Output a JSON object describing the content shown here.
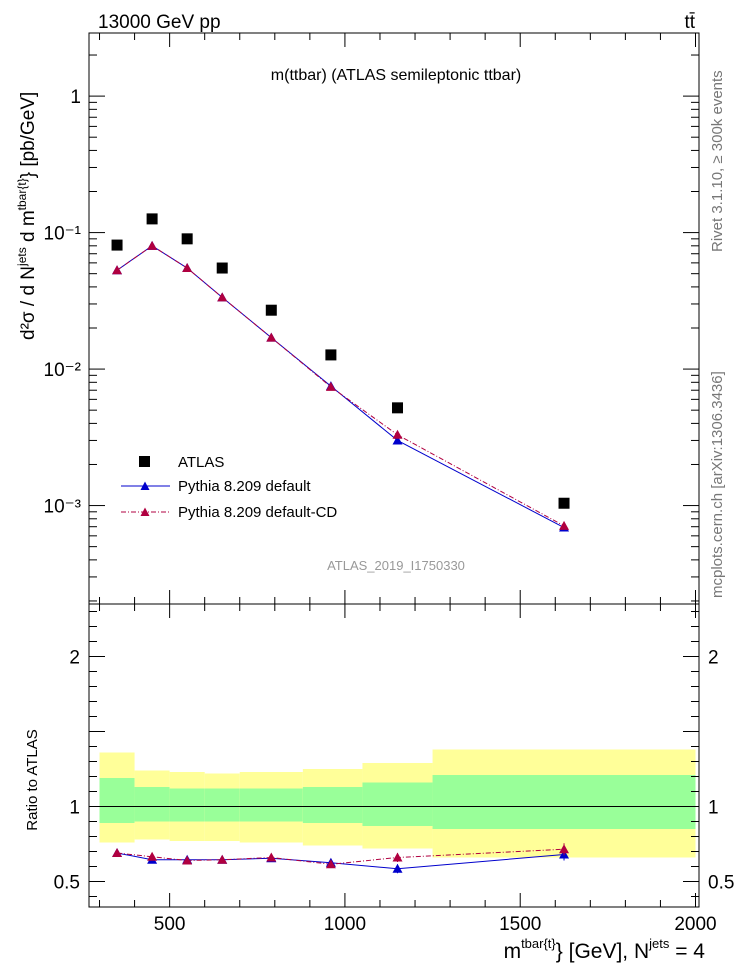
{
  "header": {
    "beam": "13000 GeV pp",
    "process": "tt̄"
  },
  "side_labels": {
    "rivet": "Rivet 3.1.10, ≥ 300k events",
    "source": "mcplots.cern.ch [arXiv:1306.3436]"
  },
  "chart_data": [
    {
      "type": "scatter",
      "title": "m(ttbar) (ATLAS semileptonic ttbar)",
      "watermark": "ATLAS_2019_I1750330",
      "ylabel": "d²σ / d Njets d mtbar{t} [pb/GeV]",
      "ylabel_parts": {
        "main": "d²σ / d N",
        "sup1": "jets",
        "mid": " d m",
        "sup2": "tbar{t}",
        "tail": "} [pb/GeV]"
      },
      "yscale": "log",
      "xlim": [
        270,
        2010
      ],
      "ylim": [
        0.00019,
        2.9
      ],
      "yticks": [
        {
          "value": 1,
          "label": "1"
        },
        {
          "value": 0.1,
          "label": "10⁻¹"
        },
        {
          "value": 0.01,
          "label": "10⁻²"
        },
        {
          "value": 0.001,
          "label": "10⁻³"
        }
      ],
      "x": [
        350,
        450,
        550,
        650,
        790,
        960,
        1150,
        1625
      ],
      "series": [
        {
          "name": "ATLAS",
          "color": "#000000",
          "marker": "square",
          "values": [
            0.081,
            0.126,
            0.09,
            0.055,
            0.027,
            0.0127,
            0.0052,
            0.00104
          ]
        },
        {
          "name": "Pythia 8.209 default",
          "color": "#0000cc",
          "marker": "triangle",
          "line": "solid",
          "values": [
            0.053,
            0.08,
            0.055,
            0.0335,
            0.017,
            0.0075,
            0.003,
            0.00069
          ]
        },
        {
          "name": "Pythia 8.209 default-CD",
          "color": "#b00040",
          "marker": "triangle",
          "line": "dashdot",
          "values": [
            0.053,
            0.08,
            0.055,
            0.0335,
            0.017,
            0.0074,
            0.0033,
            0.00071
          ]
        }
      ],
      "legend": [
        "ATLAS",
        "Pythia 8.209 default",
        "Pythia 8.209 default-CD"
      ],
      "legend_position": "bottom-left"
    },
    {
      "type": "scatter",
      "ylabel": "Ratio to ATLAS",
      "xlabel": "mtbar{t}} [GeV], Njets = 4",
      "xlabel_parts": {
        "m": "m",
        "sup1": "tbar{t}",
        "mid": "} [GeV], N",
        "sup2": "jets",
        "tail": " = 4"
      },
      "xlim": [
        270,
        2010
      ],
      "ylim": [
        0.33,
        2.35
      ],
      "xticks": [
        500,
        1000,
        1500,
        2000
      ],
      "yticks": [
        {
          "value": 0.5,
          "label": "0.5"
        },
        {
          "value": 1,
          "label": "1"
        },
        {
          "value": 2,
          "label": "2"
        }
      ],
      "reference": 1,
      "bins": [
        {
          "lo": 300,
          "hi": 400,
          "stat": [
            0.89,
            1.19
          ],
          "total": [
            0.76,
            1.36
          ]
        },
        {
          "lo": 400,
          "hi": 500,
          "stat": [
            0.9,
            1.13
          ],
          "total": [
            0.78,
            1.24
          ]
        },
        {
          "lo": 500,
          "hi": 600,
          "stat": [
            0.9,
            1.12
          ],
          "total": [
            0.77,
            1.23
          ]
        },
        {
          "lo": 600,
          "hi": 700,
          "stat": [
            0.9,
            1.12
          ],
          "total": [
            0.77,
            1.22
          ]
        },
        {
          "lo": 700,
          "hi": 880,
          "stat": [
            0.9,
            1.12
          ],
          "total": [
            0.76,
            1.23
          ]
        },
        {
          "lo": 880,
          "hi": 1050,
          "stat": [
            0.89,
            1.13
          ],
          "total": [
            0.74,
            1.25
          ]
        },
        {
          "lo": 1050,
          "hi": 1250,
          "stat": [
            0.87,
            1.16
          ],
          "total": [
            0.72,
            1.29
          ]
        },
        {
          "lo": 1250,
          "hi": 2000,
          "stat": [
            0.85,
            1.21
          ],
          "total": [
            0.66,
            1.38
          ]
        }
      ],
      "band_colors": {
        "stat": "#99ff99",
        "total": "#ffff99"
      },
      "x": [
        350,
        450,
        550,
        650,
        790,
        960,
        1150,
        1625
      ],
      "series": [
        {
          "name": "Pythia 8.209 default",
          "color": "#0000cc",
          "values": [
            0.69,
            0.645,
            0.645,
            0.645,
            0.655,
            0.625,
            0.585,
            0.68
          ],
          "errors": [
            0.012,
            0.012,
            0.012,
            0.012,
            0.015,
            0.025,
            0.03,
            0.04
          ]
        },
        {
          "name": "Pythia 8.209 default-CD",
          "color": "#b00040",
          "values": [
            0.69,
            0.665,
            0.64,
            0.645,
            0.66,
            0.615,
            0.66,
            0.715
          ],
          "errors": [
            0.012,
            0.012,
            0.012,
            0.012,
            0.015,
            0.025,
            0.03,
            0.04
          ]
        }
      ]
    }
  ]
}
